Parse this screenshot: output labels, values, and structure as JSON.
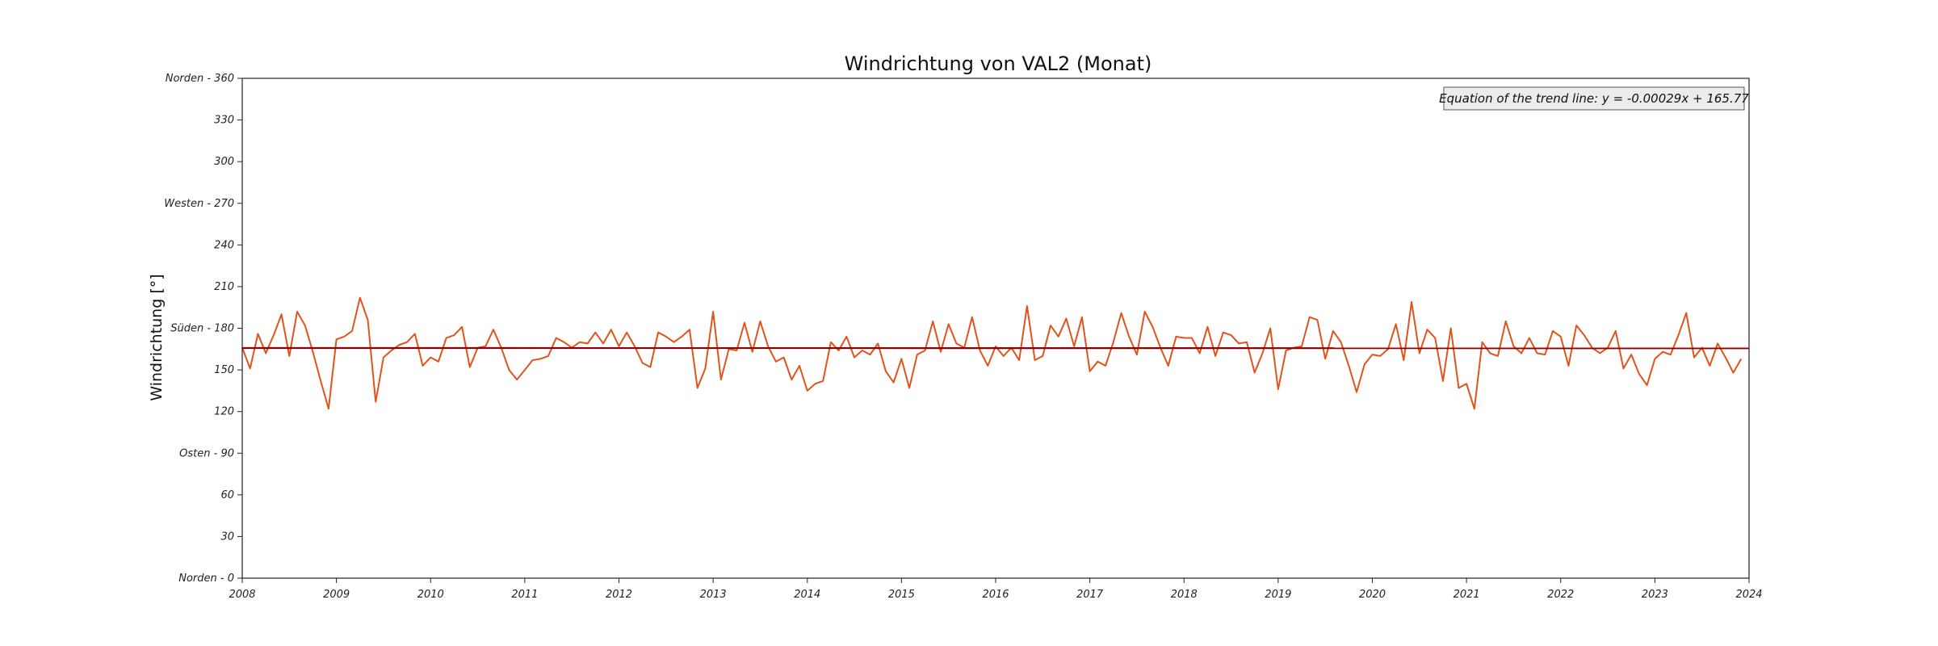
{
  "chart_data": {
    "type": "line",
    "title": "Windrichtung von VAL2 (Monat)",
    "xlabel": "",
    "ylabel": "Windrichtung [°]",
    "xlim": [
      "2008-01",
      "2024-01"
    ],
    "ylim": [
      0,
      360
    ],
    "x_ticks": [
      "2008",
      "2009",
      "2010",
      "2011",
      "2012",
      "2013",
      "2014",
      "2015",
      "2016",
      "2017",
      "2018",
      "2019",
      "2020",
      "2021",
      "2022",
      "2023",
      "2024"
    ],
    "y_ticks": [
      {
        "value": 0,
        "label": "Norden - 0"
      },
      {
        "value": 30,
        "label": "30"
      },
      {
        "value": 60,
        "label": "60"
      },
      {
        "value": 90,
        "label": "Osten - 90"
      },
      {
        "value": 120,
        "label": "120"
      },
      {
        "value": 150,
        "label": "150"
      },
      {
        "value": 180,
        "label": "Süden - 180"
      },
      {
        "value": 210,
        "label": "210"
      },
      {
        "value": 240,
        "label": "240"
      },
      {
        "value": 270,
        "label": "Westen - 270"
      },
      {
        "value": 300,
        "label": "300"
      },
      {
        "value": 330,
        "label": "330"
      },
      {
        "value": 360,
        "label": "Norden - 360"
      }
    ],
    "grid": false,
    "annotation": "Equation of the trend line: y = -0.00029x + 165.77",
    "annotation_position": "top-right",
    "series": [
      {
        "color": "#e0541c",
        "start": "2008-01",
        "step": "month",
        "values": [
          166,
          151,
          176,
          162,
          175,
          190,
          160,
          192,
          182,
          163,
          142,
          122,
          172,
          174,
          178,
          202,
          186,
          127,
          159,
          164,
          168,
          170,
          176,
          153,
          159,
          156,
          173,
          175,
          181,
          152,
          166,
          167,
          179,
          166,
          150,
          143,
          150,
          157,
          158,
          160,
          173,
          170,
          166,
          170,
          169,
          177,
          169,
          179,
          167,
          177,
          167,
          155,
          152,
          177,
          174,
          170,
          174,
          179,
          137,
          151,
          192,
          143,
          165,
          164,
          184,
          163,
          185,
          167,
          156,
          159,
          143,
          153,
          135,
          140,
          142,
          170,
          164,
          174,
          159,
          164,
          161,
          169,
          149,
          141,
          158,
          137,
          161,
          164,
          185,
          163,
          183,
          169,
          166,
          188,
          164,
          153,
          167,
          160,
          166,
          157,
          196,
          157,
          160,
          182,
          174,
          187,
          167,
          188,
          149,
          156,
          153,
          170,
          191,
          174,
          161,
          192,
          181,
          166,
          153,
          174,
          173,
          173,
          162,
          181,
          160,
          177,
          175,
          169,
          170,
          148,
          162,
          180,
          136,
          164,
          166,
          167,
          188,
          186,
          158,
          178,
          170,
          153,
          134,
          154,
          161,
          160,
          165,
          183,
          157,
          199,
          162,
          179,
          173,
          142,
          180,
          137,
          140,
          122,
          170,
          162,
          160,
          185,
          167,
          162,
          173,
          162,
          161,
          178,
          174,
          153,
          182,
          175,
          166,
          162,
          166,
          178,
          151,
          161,
          147,
          139,
          158,
          163,
          161,
          175,
          191,
          159,
          166,
          153,
          169,
          159,
          148,
          158
        ]
      },
      {
        "color": "#8b0000",
        "trend": true,
        "values": [
          165.77,
          165.6
        ]
      }
    ]
  }
}
